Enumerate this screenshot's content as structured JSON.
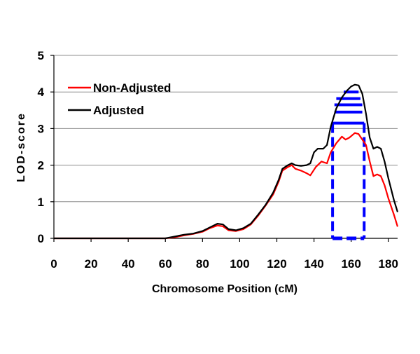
{
  "chart_data": {
    "type": "line",
    "title": "",
    "xlabel": "Chromosome Position (cM)",
    "ylabel": "LOD-score",
    "xlim": [
      0,
      185
    ],
    "ylim": [
      0,
      5
    ],
    "xticks": [
      0,
      20,
      40,
      60,
      80,
      100,
      120,
      140,
      160,
      180
    ],
    "yticks": [
      0,
      1,
      2,
      3,
      4,
      5
    ],
    "grid": "horizontal",
    "legend_position": "top-left",
    "series": [
      {
        "name": "Non-Adjusted",
        "color": "#ff0000",
        "points": [
          [
            0,
            0
          ],
          [
            60,
            0
          ],
          [
            65,
            0.03
          ],
          [
            70,
            0.08
          ],
          [
            75,
            0.12
          ],
          [
            80,
            0.18
          ],
          [
            84,
            0.28
          ],
          [
            88,
            0.35
          ],
          [
            91,
            0.33
          ],
          [
            94,
            0.22
          ],
          [
            98,
            0.2
          ],
          [
            102,
            0.25
          ],
          [
            106,
            0.38
          ],
          [
            110,
            0.62
          ],
          [
            114,
            0.9
          ],
          [
            118,
            1.2
          ],
          [
            121,
            1.55
          ],
          [
            123,
            1.85
          ],
          [
            126,
            1.95
          ],
          [
            128,
            2.0
          ],
          [
            130,
            1.9
          ],
          [
            133,
            1.85
          ],
          [
            136,
            1.78
          ],
          [
            138,
            1.72
          ],
          [
            141,
            1.95
          ],
          [
            144,
            2.1
          ],
          [
            147,
            2.05
          ],
          [
            149,
            2.35
          ],
          [
            152,
            2.6
          ],
          [
            155,
            2.78
          ],
          [
            157,
            2.7
          ],
          [
            159,
            2.75
          ],
          [
            162,
            2.88
          ],
          [
            164,
            2.85
          ],
          [
            166,
            2.7
          ],
          [
            168,
            2.55
          ],
          [
            170,
            2.1
          ],
          [
            172,
            1.7
          ],
          [
            174,
            1.75
          ],
          [
            176,
            1.7
          ],
          [
            178,
            1.45
          ],
          [
            180,
            1.1
          ],
          [
            183,
            0.65
          ],
          [
            185,
            0.32
          ]
        ]
      },
      {
        "name": "Adjusted",
        "color": "#000000",
        "points": [
          [
            0,
            0
          ],
          [
            60,
            0
          ],
          [
            65,
            0.05
          ],
          [
            70,
            0.1
          ],
          [
            75,
            0.13
          ],
          [
            80,
            0.2
          ],
          [
            84,
            0.3
          ],
          [
            88,
            0.4
          ],
          [
            91,
            0.38
          ],
          [
            94,
            0.25
          ],
          [
            98,
            0.22
          ],
          [
            102,
            0.28
          ],
          [
            106,
            0.4
          ],
          [
            110,
            0.65
          ],
          [
            114,
            0.92
          ],
          [
            118,
            1.25
          ],
          [
            121,
            1.6
          ],
          [
            123,
            1.9
          ],
          [
            126,
            2.0
          ],
          [
            128,
            2.05
          ],
          [
            130,
            2.0
          ],
          [
            133,
            1.98
          ],
          [
            136,
            2.0
          ],
          [
            138,
            2.05
          ],
          [
            140,
            2.35
          ],
          [
            142,
            2.45
          ],
          [
            145,
            2.45
          ],
          [
            147,
            2.55
          ],
          [
            149,
            3.05
          ],
          [
            152,
            3.55
          ],
          [
            155,
            3.85
          ],
          [
            158,
            4.05
          ],
          [
            160,
            4.15
          ],
          [
            162,
            4.2
          ],
          [
            164,
            4.18
          ],
          [
            166,
            3.95
          ],
          [
            168,
            3.4
          ],
          [
            170,
            2.75
          ],
          [
            172,
            2.45
          ],
          [
            174,
            2.5
          ],
          [
            176,
            2.45
          ],
          [
            178,
            2.1
          ],
          [
            180,
            1.65
          ],
          [
            183,
            1.05
          ],
          [
            185,
            0.72
          ]
        ]
      }
    ],
    "interval": {
      "color": "#0000ff",
      "x_start": 150,
      "x_end": 167,
      "y_bottom": 0,
      "y_top": 3.15,
      "bars": [
        {
          "y": 3.15,
          "x_start": 150,
          "x_end": 167
        },
        {
          "y": 3.45,
          "x_start": 151,
          "x_end": 166
        },
        {
          "y": 3.65,
          "x_start": 151,
          "x_end": 166
        },
        {
          "y": 3.82,
          "x_start": 152,
          "x_end": 165
        },
        {
          "y": 4.0,
          "x_start": 156,
          "x_end": 164
        }
      ]
    }
  }
}
